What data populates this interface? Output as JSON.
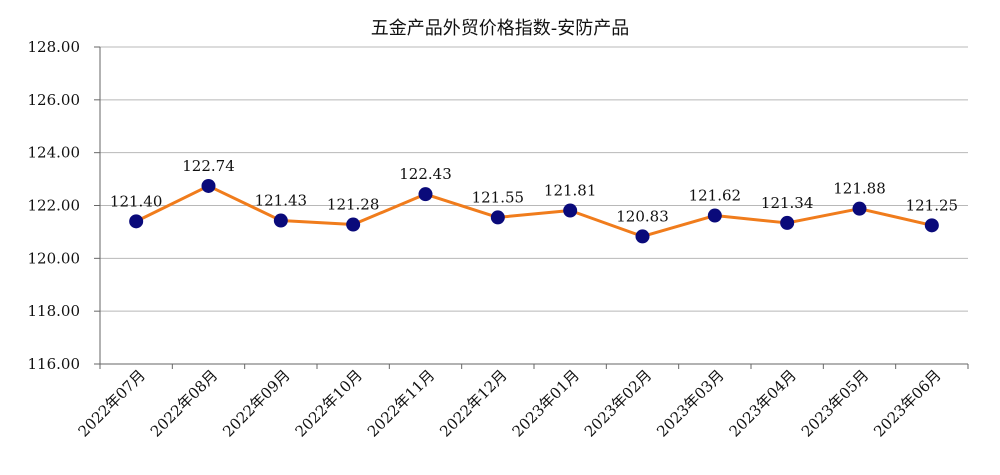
{
  "chart_data": {
    "type": "line",
    "title": "五金产品外贸价格指数-安防产品",
    "xlabel": "",
    "ylabel": "",
    "categories": [
      "2022年07月",
      "2022年08月",
      "2022年09月",
      "2022年10月",
      "2022年11月",
      "2022年12月",
      "2023年01月",
      "2023年02月",
      "2023年03月",
      "2023年04月",
      "2023年05月",
      "2023年06月"
    ],
    "series": [
      {
        "values": [
          121.4,
          122.74,
          121.43,
          121.28,
          122.43,
          121.55,
          121.81,
          120.83,
          121.62,
          121.34,
          121.88,
          121.25
        ]
      }
    ],
    "data_labels": [
      "121.40",
      "122.74",
      "121.43",
      "121.28",
      "122.43",
      "121.55",
      "121.81",
      "120.83",
      "121.62",
      "121.34",
      "121.88",
      "121.25"
    ],
    "ylim": [
      116,
      128
    ],
    "yticks": [
      "128.00",
      "126.00",
      "124.00",
      "122.00",
      "120.00",
      "118.00",
      "116.00"
    ],
    "ytick_values": [
      128,
      126,
      124,
      122,
      120,
      118,
      116
    ],
    "grid": true,
    "legend": "none",
    "colors": {
      "line": "#f07c1c",
      "marker": "#0a0a7a",
      "grid": "#b8b8b8"
    }
  }
}
